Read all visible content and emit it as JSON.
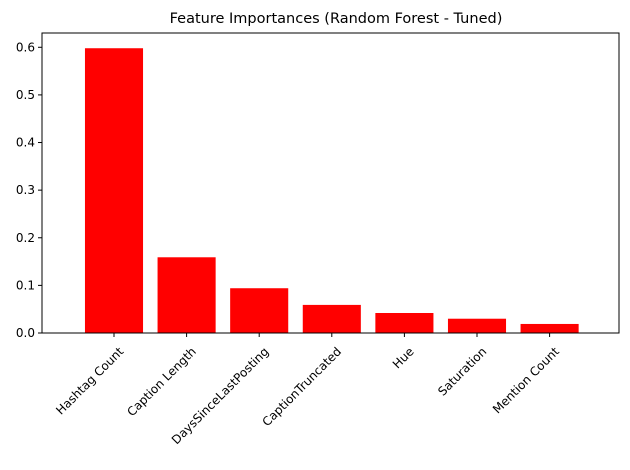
{
  "chart_data": {
    "type": "bar",
    "title": "Feature Importances (Random Forest - Tuned)",
    "xlabel": "",
    "ylabel": "",
    "categories": [
      "Hashtag Count",
      "Caption Length",
      "DaysSinceLastPosting",
      "CaptionTruncated",
      "Hue",
      "Saturation",
      "Mention Count"
    ],
    "values": [
      0.598,
      0.159,
      0.094,
      0.059,
      0.042,
      0.03,
      0.019
    ],
    "ylim": [
      0,
      0.63
    ],
    "yticks": [
      0.0,
      0.1,
      0.2,
      0.3,
      0.4,
      0.5,
      0.6
    ],
    "ytick_labels": [
      "0.0",
      "0.1",
      "0.2",
      "0.3",
      "0.4",
      "0.5",
      "0.6"
    ],
    "xtick_rotation_deg": 45,
    "bar_color": "#ff0000",
    "grid": false,
    "legend": "none"
  }
}
